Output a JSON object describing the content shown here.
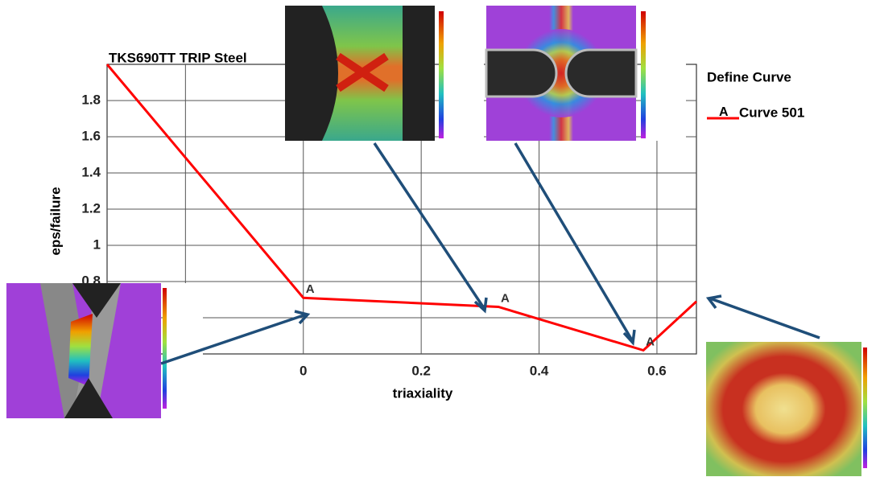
{
  "chart_data": {
    "type": "line",
    "title": "TKS690TT  TRIP   Steel",
    "legend_title": "Define Curve",
    "x_label": "triaxiality",
    "y_label": "eps/failure",
    "x": [
      -0.333,
      0,
      0.331,
      0.577,
      0.667
    ],
    "series": [
      {
        "name": "Curve 501",
        "marker_label": "A",
        "color": "#ff0000",
        "values": [
          2.0,
          0.71,
          0.66,
          0.42,
          0.69
        ]
      }
    ],
    "xlim": [
      -0.333,
      0.667
    ],
    "xticks": [
      -0.2,
      0,
      0.2,
      0.4,
      0.6
    ],
    "ylim": [
      0.4,
      2.0
    ],
    "yticks": [
      0.6,
      0.8,
      1,
      1.2,
      1.4,
      1.6,
      1.8
    ],
    "grid": true
  }
}
